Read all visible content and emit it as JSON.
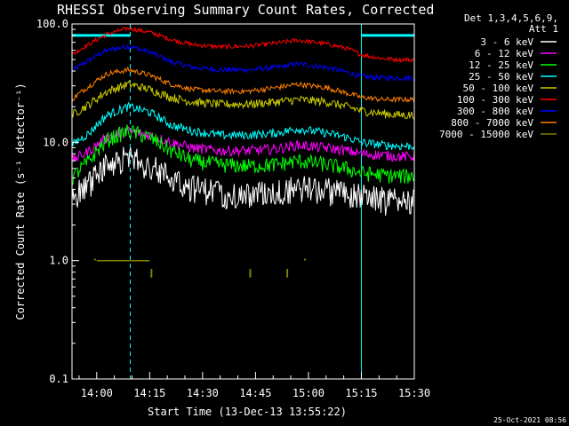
{
  "chart_data": {
    "type": "line",
    "title": "RHESSI Observing Summary Count Rates, Corrected",
    "xlabel": "Start Time (13-Dec-13 13:55:22)",
    "ylabel": "Corrected Count Rate (s⁻¹ detector⁻¹)",
    "y_scale": "log",
    "ylim": [
      0.1,
      100.0
    ],
    "xlim_minutes": [
      -2,
      95
    ],
    "x_ticks": [
      {
        "minute": 5,
        "label": "14:00"
      },
      {
        "minute": 20,
        "label": "14:15"
      },
      {
        "minute": 35,
        "label": "14:30"
      },
      {
        "minute": 50,
        "label": "14:45"
      },
      {
        "minute": 65,
        "label": "15:00"
      },
      {
        "minute": 80,
        "label": "15:15"
      },
      {
        "minute": 95,
        "label": "15:30"
      }
    ],
    "y_ticks": [
      {
        "value": 0.1,
        "label": "0.1"
      },
      {
        "value": 1.0,
        "label": "1.0"
      },
      {
        "value": 10.0,
        "label": "10.0"
      },
      {
        "value": 100.0,
        "label": "100.0"
      }
    ],
    "legend_header": [
      "Det 1,3,4,5,6,9,",
      "Att 1"
    ],
    "legend_position": "right",
    "timestamp": "25-Oct-2021 08:56",
    "x_key_minutes": [
      -2,
      3,
      8,
      14,
      20,
      26,
      32,
      40,
      48,
      56,
      62,
      70,
      76,
      80,
      86,
      91,
      95
    ],
    "series": [
      {
        "name": "3 - 6 keV",
        "color": "#ffffff",
        "values": [
          3.5,
          4.5,
          6.5,
          7.5,
          6.5,
          5.0,
          4.2,
          3.8,
          3.6,
          3.8,
          4.2,
          4.0,
          3.8,
          3.5,
          3.3,
          3.2,
          3.2
        ],
        "noise": 0.16
      },
      {
        "name": "6 - 12 keV",
        "color": "#ff00ff",
        "values": [
          7.0,
          8.5,
          11.0,
          12.5,
          11.5,
          10.0,
          9.0,
          8.5,
          8.5,
          8.8,
          9.5,
          9.0,
          8.5,
          8.0,
          7.8,
          7.6,
          7.6
        ],
        "noise": 0.06
      },
      {
        "name": "12 - 25 keV",
        "color": "#00ff00",
        "values": [
          5.0,
          7.0,
          10.5,
          12.5,
          11.0,
          8.5,
          7.0,
          6.5,
          6.3,
          6.5,
          7.0,
          6.5,
          6.0,
          5.5,
          5.3,
          5.2,
          5.2
        ],
        "noise": 0.09
      },
      {
        "name": "25 - 50 keV",
        "color": "#00ffff",
        "values": [
          9.5,
          12.0,
          17.0,
          20.0,
          18.0,
          14.0,
          12.5,
          11.5,
          11.5,
          12.0,
          13.0,
          12.0,
          11.0,
          10.0,
          9.5,
          9.3,
          9.3
        ],
        "noise": 0.05
      },
      {
        "name": "50 - 100 keV",
        "color": "#cccc00",
        "values": [
          17.0,
          21.0,
          27.0,
          31.0,
          28.0,
          24.0,
          22.0,
          21.0,
          21.0,
          22.0,
          23.0,
          22.0,
          20.0,
          18.5,
          17.5,
          17.0,
          17.0
        ],
        "noise": 0.05
      },
      {
        "name": "100 - 300 keV",
        "color": "#ff0000",
        "values": [
          55.0,
          68.0,
          82.0,
          92.0,
          85.0,
          74.0,
          67.0,
          64.0,
          65.0,
          69.0,
          73.0,
          68.0,
          62.0,
          55.0,
          51.0,
          50.0,
          50.0
        ],
        "noise": 0.025
      },
      {
        "name": "300 - 800 keV",
        "color": "#0000ff",
        "values": [
          40.0,
          50.0,
          60.0,
          65.0,
          58.0,
          48.0,
          43.0,
          41.0,
          41.0,
          43.0,
          46.0,
          43.0,
          39.0,
          36.0,
          35.0,
          35.0,
          35.0
        ],
        "noise": 0.03
      },
      {
        "name": "800 - 7000 keV",
        "color": "#ff7f00",
        "values": [
          23.0,
          30.0,
          38.0,
          41.0,
          37.0,
          31.0,
          28.0,
          27.0,
          27.0,
          29.0,
          31.0,
          29.0,
          26.0,
          24.0,
          23.0,
          23.0,
          23.0
        ],
        "noise": 0.03
      },
      {
        "name": "7000 - 15000 keV",
        "color": "#808000",
        "values": [
          1.0,
          1.0,
          1.0,
          1.0,
          1.0
        ],
        "noise": 0
      }
    ],
    "olive_points": {
      "x_min": [
        5,
        9,
        13,
        17,
        20
      ],
      "y": [
        1.0,
        1.0,
        1.0,
        1.0,
        1.0
      ]
    },
    "olive_ticks": [
      {
        "minute": 20.5,
        "y_top": 0.85,
        "y_bottom": 0.72
      },
      {
        "minute": 48.5,
        "y_top": 0.85,
        "y_bottom": 0.72
      },
      {
        "minute": 59,
        "y_top": 0.85,
        "y_bottom": 0.72
      }
    ],
    "olive_dots": [
      {
        "minute": 4.5,
        "y": 1.02
      },
      {
        "minute": 64,
        "y": 1.02
      }
    ],
    "spacecraft_night_bars": [
      {
        "start_min": -2,
        "end_min": 14.5
      },
      {
        "start_min": 80,
        "end_min": 95
      }
    ],
    "night_bar_level": 80.0,
    "solid_vertical_lines_min": [
      -2,
      80
    ],
    "dashed_vertical_lines_min": [
      14.5,
      95
    ]
  }
}
